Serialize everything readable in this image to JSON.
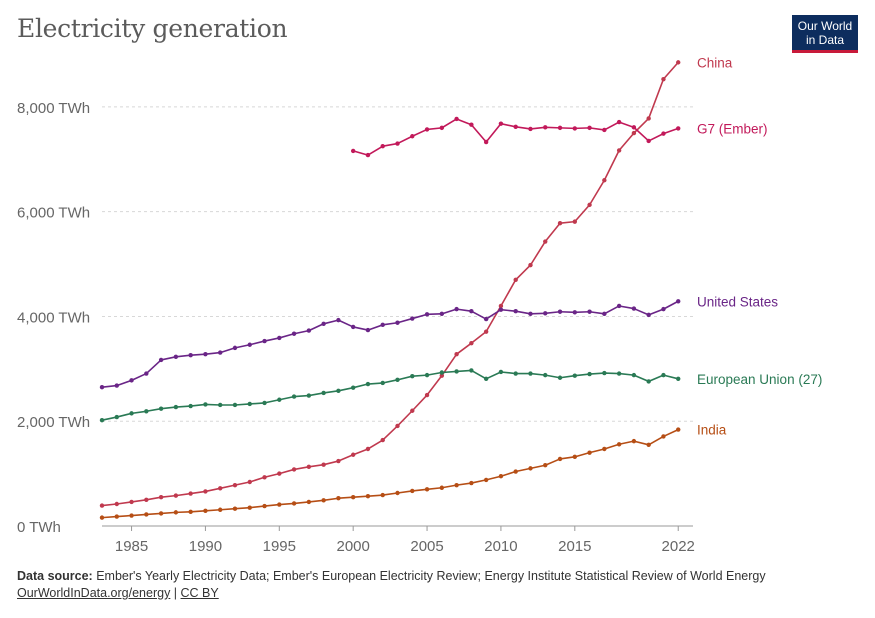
{
  "header": {
    "title": "Electricity generation",
    "logo_line1": "Our World",
    "logo_line2": "in Data"
  },
  "footer": {
    "source_label": "Data source:",
    "source_text": " Ember's Yearly Electricity Data; Ember's European Electricity Review; Energy Institute Statistical Review of World Energy",
    "link1": "OurWorldInData.org/energy",
    "separator": " | ",
    "link2": "CC BY"
  },
  "chart_data": {
    "type": "line",
    "title": "Electricity generation",
    "xlabel": "",
    "ylabel": "",
    "xlim": [
      1983,
      2023
    ],
    "ylim": [
      0,
      8800
    ],
    "yticks": [
      0,
      2000,
      4000,
      6000,
      8000
    ],
    "ytick_labels": [
      "0 TWh",
      "2,000 TWh",
      "4,000 TWh",
      "6,000 TWh",
      "8,000 TWh"
    ],
    "xticks": [
      1985,
      1990,
      1995,
      2000,
      2005,
      2010,
      2015,
      2022
    ],
    "xtick_labels": [
      "1985",
      "1990",
      "1995",
      "2000",
      "2005",
      "2010",
      "2015",
      "2022"
    ],
    "grid": "horizontal dashed",
    "series": [
      {
        "name": "China",
        "color": "#c0394e",
        "x": [
          1983,
          1984,
          1985,
          1986,
          1987,
          1988,
          1989,
          1990,
          1991,
          1992,
          1993,
          1994,
          1995,
          1996,
          1997,
          1998,
          1999,
          2000,
          2001,
          2002,
          2003,
          2004,
          2005,
          2006,
          2007,
          2008,
          2009,
          2010,
          2011,
          2012,
          2013,
          2014,
          2015,
          2016,
          2017,
          2018,
          2019,
          2020,
          2021,
          2022
        ],
        "values": [
          390,
          420,
          460,
          500,
          550,
          580,
          620,
          660,
          720,
          780,
          840,
          930,
          1000,
          1080,
          1130,
          1170,
          1240,
          1360,
          1470,
          1640,
          1910,
          2200,
          2500,
          2870,
          3280,
          3490,
          3710,
          4200,
          4700,
          4980,
          5430,
          5780,
          5810,
          6130,
          6600,
          7170,
          7500,
          7780,
          8530,
          8850
        ]
      },
      {
        "name": "G7 (Ember)",
        "color": "#c2195a",
        "x": [
          2000,
          2001,
          2002,
          2003,
          2004,
          2005,
          2006,
          2007,
          2008,
          2009,
          2010,
          2011,
          2012,
          2013,
          2014,
          2015,
          2016,
          2017,
          2018,
          2019,
          2020,
          2021,
          2022
        ],
        "values": [
          7160,
          7080,
          7250,
          7300,
          7440,
          7570,
          7600,
          7770,
          7660,
          7330,
          7680,
          7620,
          7580,
          7610,
          7600,
          7590,
          7600,
          7560,
          7710,
          7610,
          7350,
          7490,
          7590
        ]
      },
      {
        "name": "United States",
        "color": "#6a2587",
        "x": [
          1983,
          1984,
          1985,
          1986,
          1987,
          1988,
          1989,
          1990,
          1991,
          1992,
          1993,
          1994,
          1995,
          1996,
          1997,
          1998,
          1999,
          2000,
          2001,
          2002,
          2003,
          2004,
          2005,
          2006,
          2007,
          2008,
          2009,
          2010,
          2011,
          2012,
          2013,
          2014,
          2015,
          2016,
          2017,
          2018,
          2019,
          2020,
          2021,
          2022
        ],
        "values": [
          2650,
          2680,
          2780,
          2910,
          3170,
          3230,
          3260,
          3280,
          3310,
          3400,
          3460,
          3530,
          3590,
          3670,
          3730,
          3860,
          3930,
          3800,
          3740,
          3840,
          3880,
          3960,
          4040,
          4050,
          4140,
          4100,
          3950,
          4130,
          4100,
          4050,
          4060,
          4090,
          4080,
          4090,
          4050,
          4200,
          4150,
          4030,
          4140,
          4290
        ]
      },
      {
        "name": "European Union (27)",
        "color": "#2a7a55",
        "x": [
          1983,
          1984,
          1985,
          1986,
          1987,
          1988,
          1989,
          1990,
          1991,
          1992,
          1993,
          1994,
          1995,
          1996,
          1997,
          1998,
          1999,
          2000,
          2001,
          2002,
          2003,
          2004,
          2005,
          2006,
          2007,
          2008,
          2009,
          2010,
          2011,
          2012,
          2013,
          2014,
          2015,
          2016,
          2017,
          2018,
          2019,
          2020,
          2021,
          2022
        ],
        "values": [
          2020,
          2080,
          2150,
          2190,
          2240,
          2270,
          2290,
          2320,
          2310,
          2310,
          2330,
          2350,
          2410,
          2470,
          2490,
          2540,
          2580,
          2640,
          2710,
          2730,
          2790,
          2860,
          2880,
          2930,
          2950,
          2970,
          2810,
          2940,
          2910,
          2910,
          2880,
          2830,
          2870,
          2900,
          2920,
          2910,
          2880,
          2760,
          2880,
          2810
        ]
      },
      {
        "name": "India",
        "color": "#b64e15",
        "x": [
          1983,
          1984,
          1985,
          1986,
          1987,
          1988,
          1989,
          1990,
          1991,
          1992,
          1993,
          1994,
          1995,
          1996,
          1997,
          1998,
          1999,
          2000,
          2001,
          2002,
          2003,
          2004,
          2005,
          2006,
          2007,
          2008,
          2009,
          2010,
          2011,
          2012,
          2013,
          2014,
          2015,
          2016,
          2017,
          2018,
          2019,
          2020,
          2021,
          2022
        ],
        "values": [
          160,
          180,
          200,
          220,
          240,
          260,
          270,
          290,
          310,
          330,
          350,
          380,
          410,
          430,
          460,
          490,
          530,
          550,
          570,
          590,
          630,
          670,
          700,
          730,
          780,
          820,
          880,
          950,
          1040,
          1100,
          1160,
          1280,
          1320,
          1400,
          1470,
          1560,
          1620,
          1550,
          1710,
          1840
        ]
      }
    ]
  }
}
